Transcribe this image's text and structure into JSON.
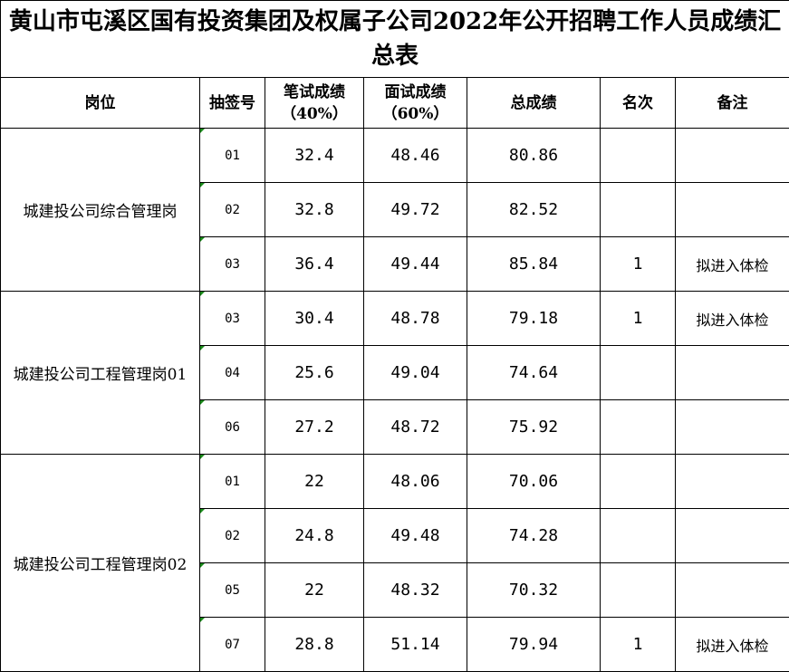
{
  "title": "黄山市屯溪区国有投资集团及权属子公司2022年公开招聘工作人员成绩汇总表",
  "headers": {
    "position": "岗位",
    "lot_number": "抽签号",
    "written": "笔试成绩",
    "written_weight": "（40%）",
    "interview": "面试成绩",
    "interview_weight": "（60%）",
    "total": "总成绩",
    "rank": "名次",
    "remark": "备注"
  },
  "groups": [
    {
      "position": "城建投公司综合管理岗",
      "rows": [
        {
          "lot": "01",
          "written": "32.4",
          "interview": "48.46",
          "total": "80.86",
          "rank": "",
          "remark": ""
        },
        {
          "lot": "02",
          "written": "32.8",
          "interview": "49.72",
          "total": "82.52",
          "rank": "",
          "remark": ""
        },
        {
          "lot": "03",
          "written": "36.4",
          "interview": "49.44",
          "total": "85.84",
          "rank": "1",
          "remark": "拟进入体检"
        }
      ]
    },
    {
      "position": "城建投公司工程管理岗01",
      "rows": [
        {
          "lot": "03",
          "written": "30.4",
          "interview": "48.78",
          "total": "79.18",
          "rank": "1",
          "remark": "拟进入体检"
        },
        {
          "lot": "04",
          "written": "25.6",
          "interview": "49.04",
          "total": "74.64",
          "rank": "",
          "remark": ""
        },
        {
          "lot": "06",
          "written": "27.2",
          "interview": "48.72",
          "total": "75.92",
          "rank": "",
          "remark": ""
        }
      ]
    },
    {
      "position": "城建投公司工程管理岗02",
      "rows": [
        {
          "lot": "01",
          "written": "22",
          "interview": "48.06",
          "total": "70.06",
          "rank": "",
          "remark": ""
        },
        {
          "lot": "02",
          "written": "24.8",
          "interview": "49.48",
          "total": "74.28",
          "rank": "",
          "remark": ""
        },
        {
          "lot": "05",
          "written": "22",
          "interview": "48.32",
          "total": "70.32",
          "rank": "",
          "remark": ""
        },
        {
          "lot": "07",
          "written": "28.8",
          "interview": "51.14",
          "total": "79.94",
          "rank": "1",
          "remark": "拟进入体检"
        }
      ]
    }
  ]
}
